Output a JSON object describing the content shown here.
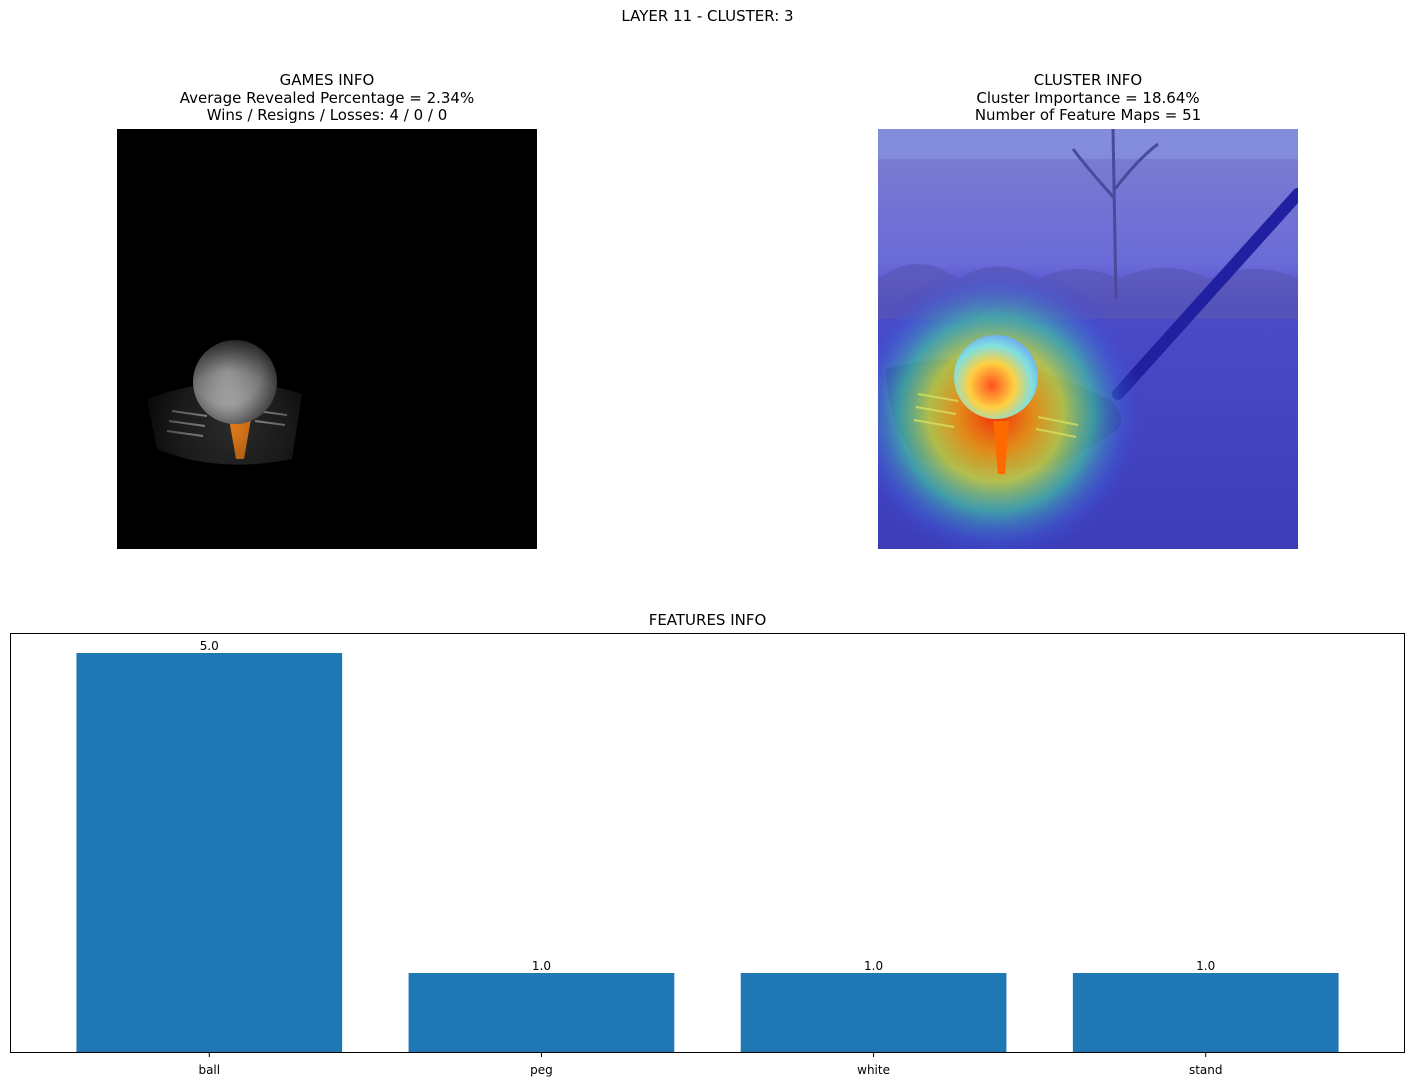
{
  "suptitle": "LAYER 11 - CLUSTER: 3",
  "games_info": {
    "title": "GAMES INFO",
    "line1": "Average Revealed Percentage = 2.34%",
    "line2": "Wins / Resigns / Losses: 4 / 0 / 0"
  },
  "cluster_info": {
    "title": "CLUSTER INFO",
    "line1": "Cluster Importance = 18.64%",
    "line2": "Number of Feature Maps = 51"
  },
  "colors": {
    "bar": "#1f77b4"
  },
  "chart_data": {
    "type": "bar",
    "title": "FEATURES INFO",
    "categories": [
      "ball",
      "peg",
      "white",
      "stand"
    ],
    "values": [
      5.0,
      1.0,
      1.0,
      1.0
    ],
    "data_labels": [
      "5.0",
      "1.0",
      "1.0",
      "1.0"
    ],
    "xlabel": "",
    "ylabel": "",
    "ylim": [
      0,
      5.25
    ],
    "y_ticks_visible": false,
    "grid": false
  }
}
